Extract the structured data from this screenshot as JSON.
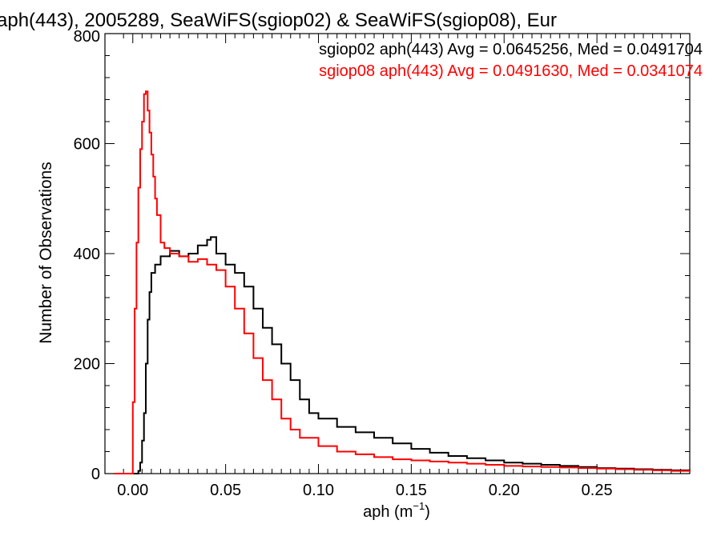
{
  "chart_data": {
    "type": "line",
    "title": "aph(443), 2005289, SeaWiFS(sgiop02) & SeaWiFS(sgiop08), Eur",
    "xlabel_main": "aph (m",
    "xlabel_sup": "−1",
    "xlabel_close": ")",
    "ylabel": "Number of Observations",
    "xlim": [
      -0.015,
      0.3
    ],
    "ylim": [
      0,
      800
    ],
    "x_ticks": [
      0.0,
      0.05,
      0.1,
      0.15,
      0.2,
      0.25
    ],
    "x_tick_labels": [
      "0.00",
      "0.05",
      "0.10",
      "0.15",
      "0.20",
      "0.25"
    ],
    "y_ticks": [
      0,
      200,
      400,
      600,
      800
    ],
    "y_tick_labels": [
      "0",
      "200",
      "400",
      "600",
      "800"
    ],
    "grid": false,
    "series": [
      {
        "name": "sgiop02",
        "color": "#000000",
        "annotation": "sgiop02 aph(443) Avg = 0.0645256, Med = 0.0491704",
        "x": [
          -0.01,
          0.0,
          0.002,
          0.003,
          0.004,
          0.005,
          0.006,
          0.007,
          0.008,
          0.009,
          0.01,
          0.012,
          0.015,
          0.02,
          0.025,
          0.03,
          0.035,
          0.04,
          0.042,
          0.045,
          0.05,
          0.055,
          0.06,
          0.065,
          0.07,
          0.075,
          0.08,
          0.085,
          0.09,
          0.095,
          0.1,
          0.11,
          0.12,
          0.13,
          0.14,
          0.15,
          0.16,
          0.17,
          0.18,
          0.19,
          0.2,
          0.21,
          0.22,
          0.23,
          0.24,
          0.25,
          0.26,
          0.27,
          0.28,
          0.29,
          0.3
        ],
        "y": [
          0,
          0,
          0,
          5,
          20,
          60,
          110,
          200,
          280,
          330,
          365,
          380,
          395,
          405,
          395,
          400,
          415,
          425,
          430,
          400,
          380,
          365,
          340,
          300,
          265,
          235,
          200,
          170,
          135,
          110,
          100,
          85,
          75,
          65,
          55,
          45,
          38,
          32,
          28,
          24,
          20,
          18,
          16,
          14,
          12,
          10,
          9,
          8,
          7,
          6,
          5
        ]
      },
      {
        "name": "sgiop08",
        "color": "#ff0000",
        "annotation": "sgiop08 aph(443) Avg = 0.0491630, Med = 0.0341074",
        "x": [
          -0.01,
          -0.002,
          0.0,
          0.001,
          0.002,
          0.003,
          0.004,
          0.005,
          0.006,
          0.007,
          0.008,
          0.009,
          0.01,
          0.011,
          0.012,
          0.013,
          0.015,
          0.017,
          0.02,
          0.025,
          0.03,
          0.035,
          0.04,
          0.045,
          0.05,
          0.055,
          0.06,
          0.065,
          0.07,
          0.075,
          0.08,
          0.085,
          0.09,
          0.1,
          0.11,
          0.12,
          0.13,
          0.14,
          0.15,
          0.16,
          0.17,
          0.18,
          0.19,
          0.2,
          0.21,
          0.22,
          0.23,
          0.24,
          0.25,
          0.26,
          0.27,
          0.28,
          0.29,
          0.3
        ],
        "y": [
          0,
          0,
          130,
          300,
          420,
          520,
          590,
          640,
          690,
          695,
          660,
          620,
          580,
          540,
          500,
          470,
          420,
          410,
          400,
          395,
          385,
          390,
          380,
          370,
          340,
          300,
          255,
          210,
          170,
          135,
          100,
          80,
          65,
          50,
          40,
          35,
          30,
          26,
          24,
          22,
          20,
          18,
          16,
          14,
          13,
          12,
          11,
          10,
          9,
          8,
          7,
          6,
          5,
          4
        ]
      }
    ]
  }
}
